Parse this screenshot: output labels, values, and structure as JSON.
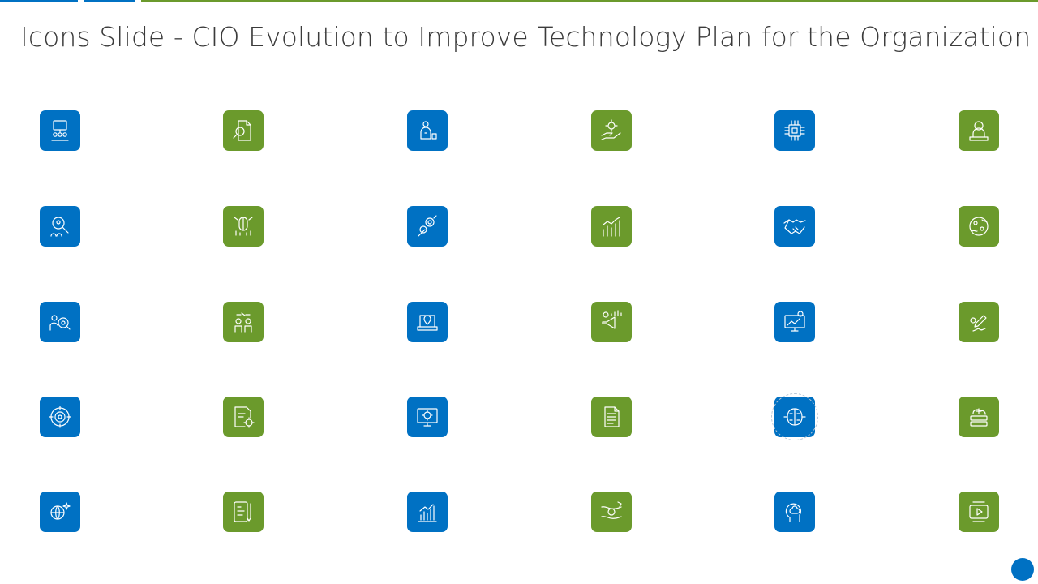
{
  "slide": {
    "title": "Icons Slide - CIO Evolution to Improve Technology Plan for the Organization"
  },
  "colors": {
    "blue": "#0071c3",
    "green": "#6b9a2c",
    "title_text": "#3b3b3b"
  },
  "icon_rows": [
    [
      {
        "icon": "team-presentation-icon",
        "color": "blue"
      },
      {
        "icon": "document-search-icon",
        "color": "green"
      },
      {
        "icon": "business-investor-icon",
        "color": "blue"
      },
      {
        "icon": "hand-gear-icon",
        "color": "green"
      },
      {
        "icon": "microchip-icon",
        "color": "blue"
      },
      {
        "icon": "worker-laptop-icon",
        "color": "green"
      }
    ],
    [
      {
        "icon": "talent-search-icon",
        "color": "blue"
      },
      {
        "icon": "brain-growth-icon",
        "color": "green"
      },
      {
        "icon": "gear-strategy-icon",
        "color": "blue"
      },
      {
        "icon": "growth-chart-icon",
        "color": "green"
      },
      {
        "icon": "handshake-icon",
        "color": "blue"
      },
      {
        "icon": "global-network-icon",
        "color": "green"
      }
    ],
    [
      {
        "icon": "analyst-search-icon",
        "color": "blue"
      },
      {
        "icon": "team-ideas-icon",
        "color": "green"
      },
      {
        "icon": "laptop-location-icon",
        "color": "blue"
      },
      {
        "icon": "marketing-megaphone-icon",
        "color": "green"
      },
      {
        "icon": "monitor-finance-icon",
        "color": "blue"
      },
      {
        "icon": "pen-signature-icon",
        "color": "green"
      }
    ],
    [
      {
        "icon": "target-process-icon",
        "color": "blue"
      },
      {
        "icon": "document-settings-icon",
        "color": "green"
      },
      {
        "icon": "monitor-settings-icon",
        "color": "blue"
      },
      {
        "icon": "report-document-icon",
        "color": "green"
      },
      {
        "icon": "ai-brain-icon",
        "color": "blue"
      },
      {
        "icon": "cloud-server-icon",
        "color": "green"
      }
    ],
    [
      {
        "icon": "global-innovation-icon",
        "color": "blue"
      },
      {
        "icon": "tablet-pen-icon",
        "color": "green"
      },
      {
        "icon": "bar-growth-icon",
        "color": "blue"
      },
      {
        "icon": "idea-path-icon",
        "color": "green"
      },
      {
        "icon": "head-brain-icon",
        "color": "blue"
      },
      {
        "icon": "video-player-icon",
        "color": "green"
      }
    ]
  ]
}
